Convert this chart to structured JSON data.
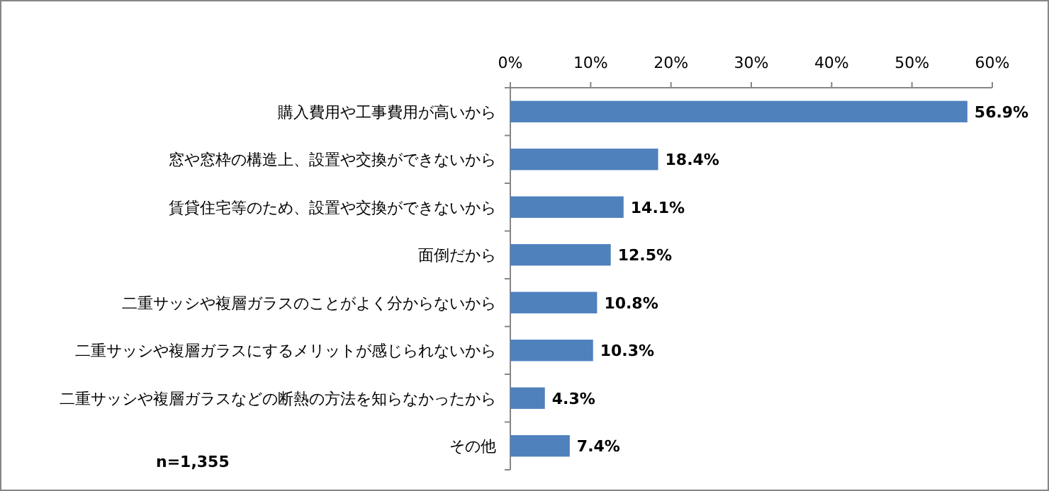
{
  "chart_data": {
    "type": "bar",
    "orientation": "horizontal",
    "categories": [
      "購入費用や工事費用が高いから",
      "窓や窓枠の構造上、設置や交換ができないから",
      "賃貸住宅等のため、設置や交換ができないから",
      "面倒だから",
      "二重サッシや複層ガラスのことがよく分からないから",
      "二重サッシや複層ガラスにするメリットが感じられないから",
      "二重サッシや複層ガラスなどの断熱の方法を知らなかったから",
      "その他"
    ],
    "values": [
      56.9,
      18.4,
      14.1,
      12.5,
      10.8,
      10.3,
      4.3,
      7.4
    ],
    "value_labels": [
      "56.9%",
      "18.4%",
      "14.1%",
      "12.5%",
      "10.8%",
      "10.3%",
      "4.3%",
      "7.4%"
    ],
    "color": "#4f81bd",
    "xlim": [
      0,
      60
    ],
    "xticks": [
      {
        "value": 0,
        "label": "0%"
      },
      {
        "value": 10,
        "label": "10%"
      },
      {
        "value": 20,
        "label": "20%"
      },
      {
        "value": 30,
        "label": "30%"
      },
      {
        "value": 40,
        "label": "40%"
      },
      {
        "value": 50,
        "label": "50%"
      },
      {
        "value": 60,
        "label": "60%"
      }
    ],
    "annotations": [
      "n=1,355"
    ]
  }
}
